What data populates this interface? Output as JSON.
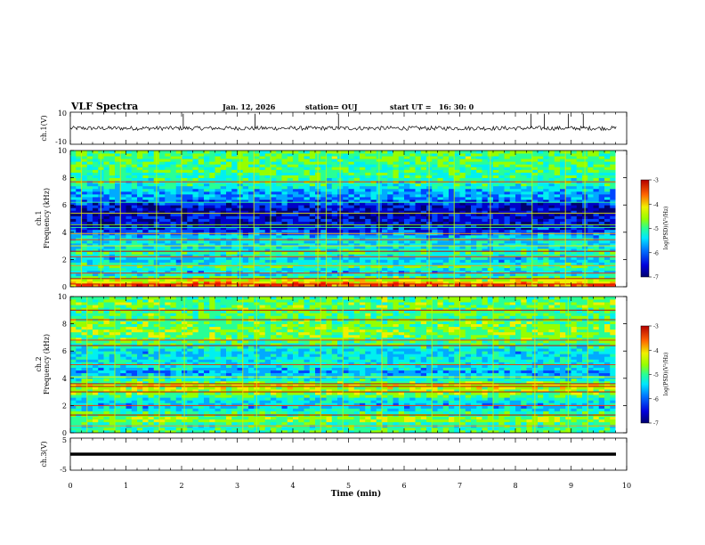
{
  "header": {
    "title": "VLF Spectra",
    "date": "Jan. 12, 2026",
    "station": "station= OUJ",
    "start": "start UT =   16: 30: 0"
  },
  "colors": {
    "colormap": [
      "#00006e",
      "#0000c8",
      "#0046ff",
      "#00aaff",
      "#00f0f0",
      "#28ff96",
      "#96ff00",
      "#f0f000",
      "#ffa000",
      "#ff2800",
      "#c80000"
    ],
    "trace": "#000000",
    "axes": "#000000"
  },
  "chart_data": [
    {
      "type": "line",
      "name": "ch1-waveform",
      "ylabel": "ch.1(V)",
      "ylim": [
        -10,
        10
      ],
      "yticks": [
        "10",
        "-10"
      ],
      "xlim": [
        0,
        10
      ],
      "baseline": 0,
      "spikes_min": [
        2.03,
        3.32,
        4.82,
        8.28,
        8.52,
        8.95,
        9.22
      ]
    },
    {
      "type": "heatmap",
      "name": "ch1-spectrogram",
      "ylabel_lines": [
        "ch.1",
        "Frequency (kHz)"
      ],
      "ylim": [
        0,
        10
      ],
      "yticks": [
        "0",
        "2",
        "4",
        "6",
        "8",
        "10"
      ],
      "xlim": [
        0,
        9.8
      ],
      "colorbar": {
        "label": "log(PSD)(V²/Hz)",
        "range": [
          -7,
          -3
        ],
        "ticks": [
          "-3",
          "-4",
          "-5",
          "-6",
          "-7"
        ]
      },
      "profile_freq_khz": [
        0,
        0.5,
        1,
        1.5,
        2,
        2.5,
        3,
        3.5,
        4,
        4.5,
        5,
        5.5,
        6,
        6.5,
        7,
        7.5,
        8,
        8.5,
        9,
        9.5,
        10
      ],
      "profile_level": [
        -3.6,
        -4.4,
        -5.6,
        -5.0,
        -5.6,
        -5.0,
        -5.5,
        -5.3,
        -6.0,
        -6.5,
        -6.3,
        -6.6,
        -6.4,
        -5.8,
        -5.7,
        -5.2,
        -5.1,
        -5.0,
        -5.0,
        -4.9,
        -4.9
      ],
      "lines_khz": [
        0.2,
        0.6,
        1.0,
        1.55,
        2.2,
        2.6,
        3.0,
        3.45,
        3.9,
        4.35,
        4.55,
        5.4,
        6.2,
        7.7
      ],
      "sferics_min": [
        0.2,
        0.55,
        0.9,
        1.55,
        2.0,
        3.05,
        3.3,
        3.6,
        4.45,
        4.6,
        4.85,
        5.55,
        6.45,
        6.9,
        7.55,
        8.3,
        8.9,
        9.25
      ]
    },
    {
      "type": "heatmap",
      "name": "ch2-spectrogram",
      "ylabel_lines": [
        "ch.2",
        "Frequency (kHz)"
      ],
      "ylim": [
        0,
        10
      ],
      "yticks": [
        "0",
        "2",
        "4",
        "6",
        "8",
        "10"
      ],
      "xlim": [
        0,
        9.8
      ],
      "colorbar": {
        "label": "log(PSD)(V²/Hz)",
        "range": [
          -7,
          -3
        ],
        "ticks": [
          "-3",
          "-4",
          "-5",
          "-6",
          "-7"
        ]
      },
      "profile_freq_khz": [
        0,
        0.5,
        1,
        1.5,
        2,
        2.5,
        3,
        3.5,
        4,
        4.5,
        5,
        5.5,
        6,
        6.5,
        7,
        7.5,
        8,
        8.5,
        9,
        9.5,
        10
      ],
      "profile_level": [
        -4.9,
        -5.2,
        -4.6,
        -5.1,
        -5.6,
        -5.3,
        -4.6,
        -4.4,
        -5.4,
        -5.7,
        -5.3,
        -5.4,
        -5.5,
        -5.0,
        -4.8,
        -4.7,
        -4.8,
        -4.9,
        -4.9,
        -4.8,
        -4.9
      ],
      "lines_khz": [
        0.5,
        1.3,
        2.0,
        3.0,
        3.4,
        3.6,
        4.1,
        5.0,
        6.4,
        6.8,
        8.3,
        9.0
      ],
      "sferics_min": [
        0.3,
        0.8,
        1.6,
        2.05,
        3.1,
        3.35,
        4.5,
        4.9,
        5.6,
        6.5,
        7.0,
        7.6,
        8.35,
        8.95,
        9.3
      ]
    },
    {
      "type": "line",
      "name": "ch3-waveform",
      "ylabel": "ch.3(V)",
      "ylim": [
        -5,
        5
      ],
      "yticks": [
        "5",
        "-5"
      ],
      "xlim": [
        0,
        10
      ],
      "baseline": 0
    }
  ],
  "xaxis": {
    "label": "Time (min)",
    "ticks": [
      "0",
      "1",
      "2",
      "3",
      "4",
      "5",
      "6",
      "7",
      "8",
      "9",
      "10"
    ]
  }
}
